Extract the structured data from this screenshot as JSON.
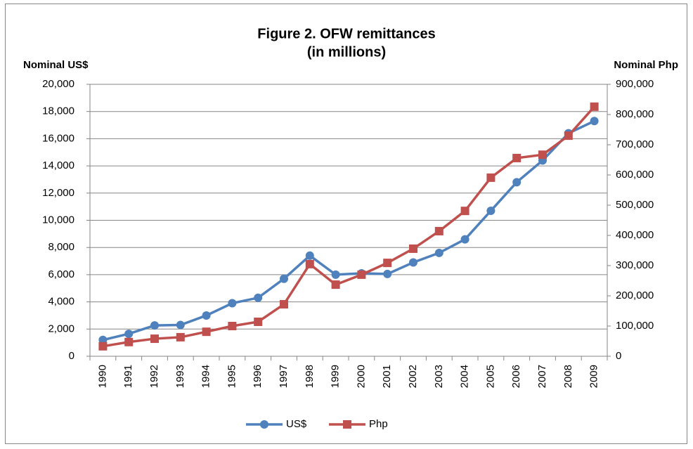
{
  "chart_data": {
    "type": "line",
    "title": "Figure 2. OFW remittances",
    "subtitle": "(in millions)",
    "ylabel": "Nominal US$",
    "y2label": "Nominal Php",
    "categories": [
      "1990",
      "1991",
      "1992",
      "1993",
      "1994",
      "1995",
      "1996",
      "1997",
      "1998",
      "1999",
      "2000",
      "2001",
      "2002",
      "2003",
      "2004",
      "2005",
      "2006",
      "2007",
      "2008",
      "2009"
    ],
    "series": [
      {
        "name": "US$",
        "color": "#4f81bd",
        "axis": "y",
        "values": [
          1200,
          1650,
          2270,
          2300,
          3000,
          3900,
          4300,
          5700,
          7400,
          6000,
          6100,
          6050,
          6900,
          7600,
          8600,
          10700,
          12800,
          14400,
          16400,
          17300
        ]
      },
      {
        "name": "Php",
        "color": "#c0504d",
        "axis": "y2",
        "values": [
          33000,
          47000,
          58000,
          63000,
          81000,
          100000,
          114000,
          172000,
          305000,
          237000,
          270000,
          309000,
          356000,
          414000,
          481000,
          591000,
          656000,
          667000,
          730000,
          826000
        ]
      }
    ],
    "ylim": [
      0,
      20000
    ],
    "yticks": [
      0,
      {
        "value": 2000,
        "label": "2,000"
      },
      {
        "value": 4000,
        "label": "4,000"
      },
      {
        "value": 6000,
        "label": "6,000"
      },
      {
        "value": 8000,
        "label": "8,000"
      },
      {
        "value": 10000,
        "label": "10,000"
      },
      {
        "value": 12000,
        "label": "12,000"
      },
      {
        "value": 14000,
        "label": "14,000"
      },
      {
        "value": 16000,
        "label": "16,000"
      },
      {
        "value": 18000,
        "label": "18,000"
      },
      {
        "value": 20000,
        "label": "20,000"
      }
    ],
    "y2lim": [
      0,
      900000
    ],
    "y2ticks": [
      0,
      {
        "value": 100000,
        "label": "100,000"
      },
      {
        "value": 200000,
        "label": "200,000"
      },
      {
        "value": 300000,
        "label": "300,000"
      },
      {
        "value": 400000,
        "label": "400,000"
      },
      {
        "value": 500000,
        "label": "500,000"
      },
      {
        "value": 600000,
        "label": "600,000"
      },
      {
        "value": 700000,
        "label": "700,000"
      },
      {
        "value": 800000,
        "label": "800,000"
      },
      {
        "value": 900000,
        "label": "900,000"
      }
    ],
    "grid": true,
    "legend": "bottom"
  }
}
